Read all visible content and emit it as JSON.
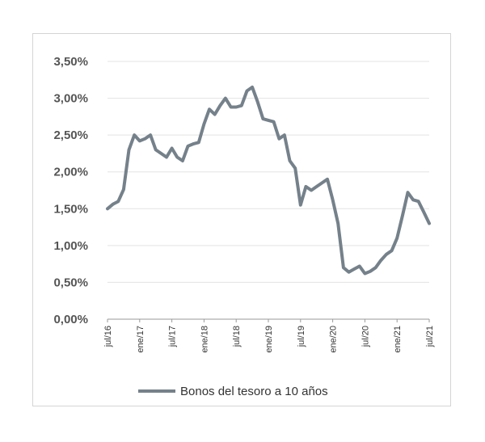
{
  "chart_data": {
    "type": "line",
    "title": "",
    "xlabel": "",
    "ylabel": "",
    "ylim": [
      0,
      3.5
    ],
    "yticks": [
      "0,00%",
      "0,50%",
      "1,00%",
      "1,50%",
      "2,00%",
      "2,50%",
      "3,00%",
      "3,50%"
    ],
    "ytick_values": [
      0,
      0.5,
      1.0,
      1.5,
      2.0,
      2.5,
      3.0,
      3.5
    ],
    "xticks": [
      "jul/16",
      "ene/17",
      "jul/17",
      "ene/18",
      "jul/18",
      "ene/19",
      "jul/19",
      "ene/20",
      "jul/20",
      "ene/21",
      "jul/21"
    ],
    "grid": true,
    "legend_position": "bottom",
    "color": "#75818a",
    "series": [
      {
        "name": "Bonos del tesoro a 10 años",
        "x": [
          "2016-07",
          "2016-08",
          "2016-09",
          "2016-10",
          "2016-11",
          "2016-12",
          "2017-01",
          "2017-02",
          "2017-03",
          "2017-04",
          "2017-05",
          "2017-06",
          "2017-07",
          "2017-08",
          "2017-09",
          "2017-10",
          "2017-11",
          "2017-12",
          "2018-01",
          "2018-02",
          "2018-03",
          "2018-04",
          "2018-05",
          "2018-06",
          "2018-07",
          "2018-08",
          "2018-09",
          "2018-10",
          "2018-11",
          "2018-12",
          "2019-01",
          "2019-02",
          "2019-03",
          "2019-04",
          "2019-05",
          "2019-06",
          "2019-07",
          "2019-08",
          "2019-09",
          "2019-10",
          "2019-11",
          "2019-12",
          "2020-01",
          "2020-02",
          "2020-03",
          "2020-04",
          "2020-05",
          "2020-06",
          "2020-07",
          "2020-08",
          "2020-09",
          "2020-10",
          "2020-11",
          "2020-12",
          "2021-01",
          "2021-02",
          "2021-03",
          "2021-04",
          "2021-05",
          "2021-06",
          "2021-07"
        ],
        "values": [
          1.5,
          1.56,
          1.6,
          1.76,
          2.3,
          2.5,
          2.42,
          2.45,
          2.5,
          2.3,
          2.25,
          2.2,
          2.32,
          2.2,
          2.15,
          2.35,
          2.38,
          2.4,
          2.65,
          2.85,
          2.78,
          2.9,
          3.0,
          2.88,
          2.88,
          2.9,
          3.1,
          3.15,
          2.95,
          2.72,
          2.7,
          2.68,
          2.45,
          2.5,
          2.15,
          2.05,
          1.55,
          1.8,
          1.75,
          1.8,
          1.85,
          1.9,
          1.62,
          1.3,
          0.7,
          0.64,
          0.68,
          0.72,
          0.62,
          0.65,
          0.7,
          0.8,
          0.88,
          0.93,
          1.1,
          1.4,
          1.72,
          1.62,
          1.6,
          1.45,
          1.3
        ]
      }
    ]
  }
}
